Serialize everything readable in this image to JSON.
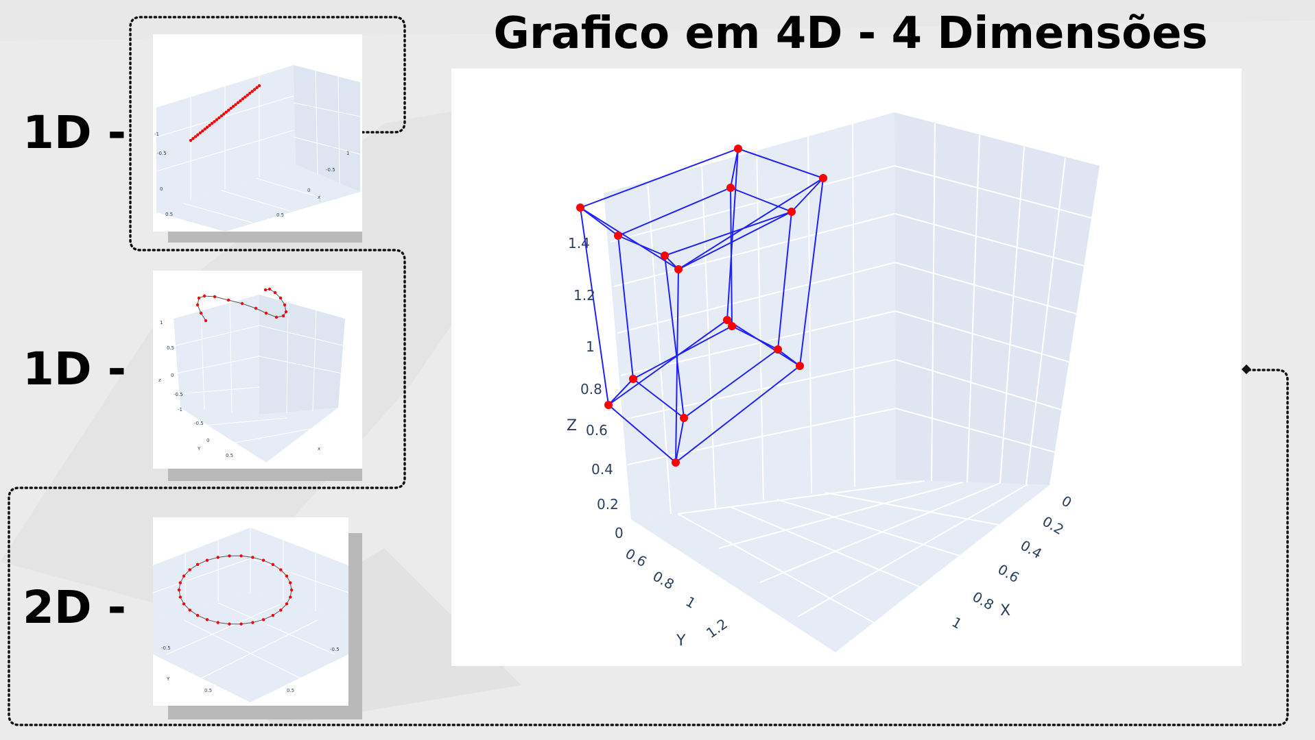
{
  "title": "Grafico em 4D - 4 Dimensões",
  "rows": [
    {
      "label": "1D -",
      "kind": "line"
    },
    {
      "label": "1D -",
      "kind": "curve"
    },
    {
      "label": "2D -",
      "kind": "circle"
    }
  ],
  "main_plot": {
    "axis_labels": {
      "x": "X",
      "y": "Y",
      "z": "Z"
    },
    "z_ticks": [
      "1.4",
      "1.2",
      "1",
      "0.8",
      "0.6",
      "0.4",
      "0.2",
      "0"
    ],
    "x_ticks": [
      "0",
      "0.2",
      "0.4",
      "0.6",
      "0.8",
      "1"
    ],
    "y_ticks": [
      "0.6",
      "0.8",
      "1",
      "1.2"
    ]
  },
  "thumb1": {
    "ticks": [
      "-0.5",
      "0",
      "0.5",
      "-1",
      "-0.5",
      "0",
      "0.5",
      "1",
      "x"
    ]
  },
  "thumb2": {
    "ticks": [
      "1",
      "0.5",
      "0",
      "-0.5",
      "-1",
      "z",
      "-0.5",
      "0",
      "0.5",
      "Y",
      "x"
    ]
  },
  "thumb3": {
    "ticks": [
      "-0.5",
      "0.5",
      "-0.5",
      "0.5",
      "Y"
    ]
  },
  "colors": {
    "marker": "#ff0000",
    "edge": "#1f1fff",
    "pane": "#e5ecf6",
    "grid": "#ffffff"
  }
}
